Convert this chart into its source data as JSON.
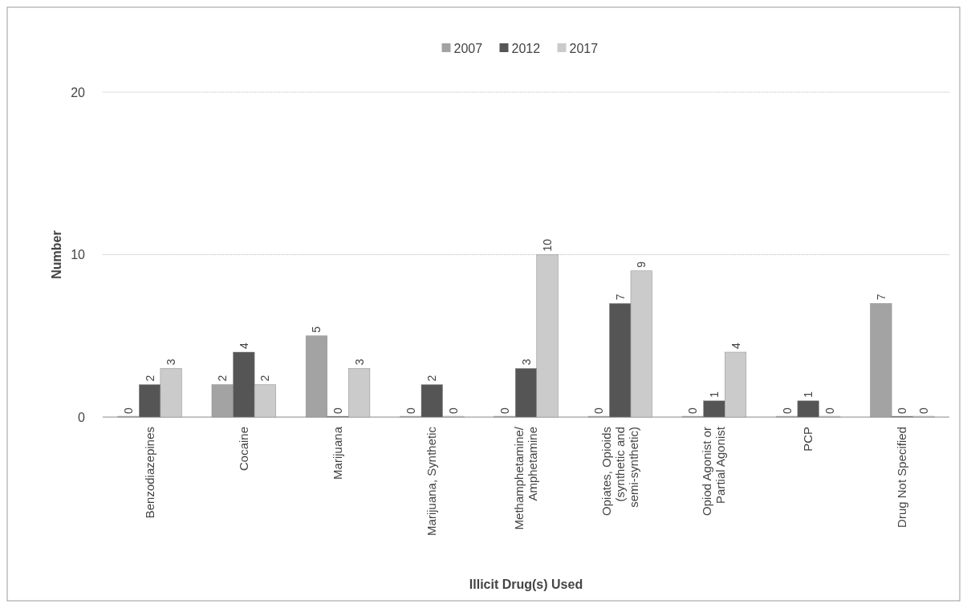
{
  "chart_data": {
    "type": "bar",
    "xlabel": "Illicit Drug(s) Used",
    "ylabel": "Number",
    "categories": [
      "Benzodiazepines",
      "Cocaine",
      "Marijuana",
      "Marijuana, Synthetic",
      "Methamphetamine/ Amphetamine",
      "Opiates, Opioids (synthetic and semi-synthetic)",
      "Opiod Agonist or Partial Agonist",
      "PCP",
      "Drug Not Specified"
    ],
    "series": [
      {
        "name": "2007",
        "color": "#a3a3a3",
        "values": [
          0,
          2,
          5,
          0,
          0,
          0,
          0,
          0,
          7
        ]
      },
      {
        "name": "2012",
        "color": "#555555",
        "values": [
          2,
          4,
          0,
          2,
          3,
          7,
          1,
          1,
          0
        ]
      },
      {
        "name": "2017",
        "color": "#cbcbcb",
        "values": [
          3,
          2,
          3,
          0,
          10,
          9,
          4,
          0,
          0
        ]
      }
    ],
    "ylim": [
      0,
      20
    ],
    "yticks": [
      0,
      10,
      20
    ],
    "grid": "y",
    "legend": "top",
    "data_labels": true
  }
}
